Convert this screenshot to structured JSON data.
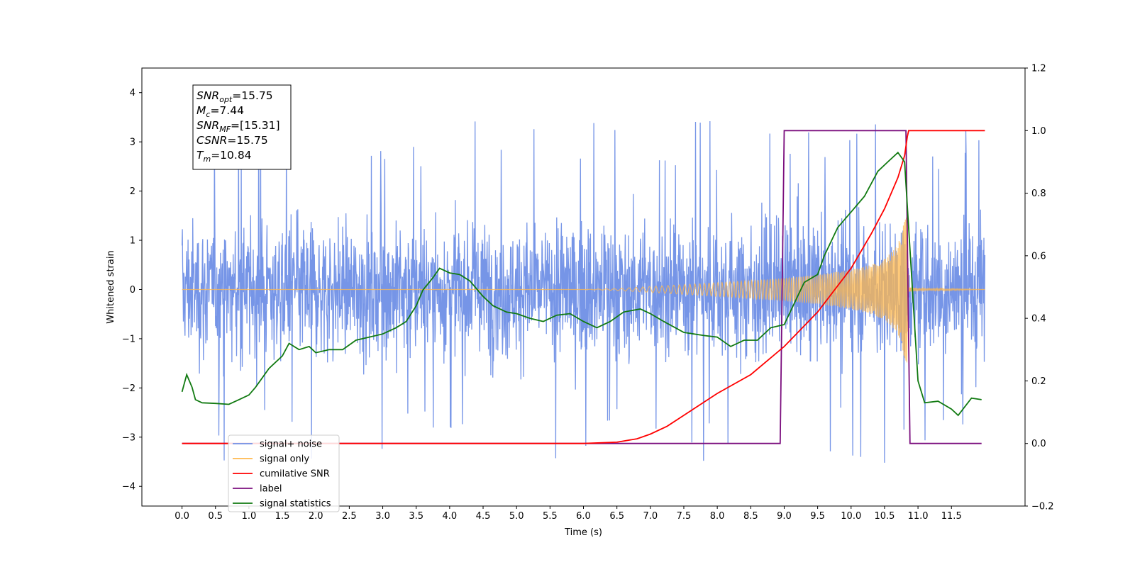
{
  "chart_data": {
    "type": "line",
    "xlabel": "Time (s)",
    "ylabel": "Whitened strain",
    "xlim": [
      -0.6,
      12.6
    ],
    "ylim": [
      -4.4,
      4.5
    ],
    "y2lim": [
      -0.2,
      1.2
    ],
    "x_ticks": [
      "0.0",
      "0.5",
      "1.0",
      "1.5",
      "2.0",
      "2.5",
      "3.0",
      "3.5",
      "4.0",
      "4.5",
      "5.0",
      "5.5",
      "6.0",
      "6.5",
      "7.0",
      "7.5",
      "8.0",
      "8.5",
      "9.0",
      "9.5",
      "10.0",
      "10.5",
      "11.0",
      "11.5"
    ],
    "y_ticks": [
      "4",
      "3",
      "2",
      "1",
      "0",
      "−1",
      "−2",
      "−3",
      "−4"
    ],
    "y2_ticks": [
      "1.2",
      "1.0",
      "0.8",
      "0.6",
      "0.4",
      "0.2",
      "0.0",
      "−0.2"
    ],
    "annotations": [
      {
        "id": "snr-opt",
        "sym": "SNR",
        "sub": "opt",
        "rest": "=15.75"
      },
      {
        "id": "mc",
        "sym": "M",
        "sub": "c",
        "rest": "=7.44"
      },
      {
        "id": "snr-mf",
        "sym": "SNR",
        "sub": "MF",
        "rest": "=[15.31]"
      },
      {
        "id": "csnr",
        "sym": "CSNR",
        "sub": "",
        "rest": "=15.75"
      },
      {
        "id": "tm",
        "sym": "T",
        "sub": "m",
        "rest": "=10.84"
      }
    ],
    "series": [
      {
        "name": "signal+ noise",
        "axis": "left",
        "color": "#6f8fe6",
        "description": "whitened strain noise, typical amplitude within ±2, extremes from −3.9 to 4.1",
        "spread": 1.9,
        "spikes_max": 4.1,
        "spikes_min": -3.9,
        "x_range": [
          0.0,
          12.0
        ]
      },
      {
        "name": "signal only",
        "axis": "left",
        "color": "#ffb84d",
        "chirp_envelope": [
          [
            0.0,
            0.0
          ],
          [
            6.0,
            0.0
          ],
          [
            6.5,
            0.02
          ],
          [
            7.0,
            0.06
          ],
          [
            7.5,
            0.1
          ],
          [
            8.0,
            0.14
          ],
          [
            8.5,
            0.18
          ],
          [
            9.0,
            0.23
          ],
          [
            9.5,
            0.3
          ],
          [
            10.0,
            0.4
          ],
          [
            10.3,
            0.5
          ],
          [
            10.5,
            0.62
          ],
          [
            10.7,
            0.9
          ],
          [
            10.8,
            1.4
          ],
          [
            10.84,
            1.7
          ],
          [
            10.86,
            0.05
          ],
          [
            11.0,
            0.02
          ],
          [
            12.0,
            0.0
          ]
        ]
      },
      {
        "name": "cumilative SNR",
        "axis": "right",
        "color": "#ff0000",
        "points": [
          [
            0.0,
            0.0
          ],
          [
            6.0,
            0.0
          ],
          [
            6.5,
            0.004
          ],
          [
            6.8,
            0.015
          ],
          [
            7.0,
            0.03
          ],
          [
            7.25,
            0.055
          ],
          [
            7.5,
            0.09
          ],
          [
            8.0,
            0.16
          ],
          [
            8.5,
            0.22
          ],
          [
            9.0,
            0.31
          ],
          [
            9.5,
            0.42
          ],
          [
            10.0,
            0.56
          ],
          [
            10.3,
            0.67
          ],
          [
            10.5,
            0.75
          ],
          [
            10.7,
            0.85
          ],
          [
            10.8,
            0.92
          ],
          [
            10.84,
            0.98
          ],
          [
            10.86,
            1.0
          ],
          [
            12.0,
            1.0
          ]
        ]
      },
      {
        "name": "label",
        "axis": "right",
        "color": "#7b0e7e",
        "points": [
          [
            0.0,
            0.0
          ],
          [
            8.94,
            0.0
          ],
          [
            9.0,
            1.0
          ],
          [
            10.82,
            1.0
          ],
          [
            10.88,
            0.0
          ],
          [
            11.95,
            0.0
          ]
        ]
      },
      {
        "name": "signal statistics",
        "axis": "right",
        "color": "#117a11",
        "points": [
          [
            0.0,
            0.165
          ],
          [
            0.07,
            0.22
          ],
          [
            0.15,
            0.18
          ],
          [
            0.2,
            0.14
          ],
          [
            0.3,
            0.13
          ],
          [
            0.5,
            0.128
          ],
          [
            0.7,
            0.125
          ],
          [
            0.85,
            0.14
          ],
          [
            1.0,
            0.155
          ],
          [
            1.1,
            0.18
          ],
          [
            1.3,
            0.24
          ],
          [
            1.5,
            0.28
          ],
          [
            1.6,
            0.32
          ],
          [
            1.75,
            0.3
          ],
          [
            1.9,
            0.31
          ],
          [
            2.0,
            0.29
          ],
          [
            2.2,
            0.3
          ],
          [
            2.4,
            0.3
          ],
          [
            2.6,
            0.33
          ],
          [
            2.8,
            0.34
          ],
          [
            3.0,
            0.35
          ],
          [
            3.2,
            0.37
          ],
          [
            3.35,
            0.39
          ],
          [
            3.5,
            0.44
          ],
          [
            3.6,
            0.49
          ],
          [
            3.75,
            0.53
          ],
          [
            3.85,
            0.56
          ],
          [
            4.0,
            0.545
          ],
          [
            4.15,
            0.54
          ],
          [
            4.3,
            0.52
          ],
          [
            4.5,
            0.47
          ],
          [
            4.65,
            0.44
          ],
          [
            4.85,
            0.42
          ],
          [
            5.0,
            0.415
          ],
          [
            5.2,
            0.4
          ],
          [
            5.4,
            0.39
          ],
          [
            5.6,
            0.41
          ],
          [
            5.8,
            0.415
          ],
          [
            6.0,
            0.39
          ],
          [
            6.2,
            0.37
          ],
          [
            6.4,
            0.39
          ],
          [
            6.6,
            0.42
          ],
          [
            6.85,
            0.43
          ],
          [
            7.0,
            0.415
          ],
          [
            7.2,
            0.39
          ],
          [
            7.5,
            0.355
          ],
          [
            7.8,
            0.345
          ],
          [
            8.0,
            0.34
          ],
          [
            8.2,
            0.31
          ],
          [
            8.4,
            0.33
          ],
          [
            8.6,
            0.33
          ],
          [
            8.8,
            0.37
          ],
          [
            9.0,
            0.38
          ],
          [
            9.2,
            0.47
          ],
          [
            9.3,
            0.515
          ],
          [
            9.5,
            0.54
          ],
          [
            9.6,
            0.6
          ],
          [
            9.8,
            0.69
          ],
          [
            10.0,
            0.74
          ],
          [
            10.2,
            0.79
          ],
          [
            10.4,
            0.87
          ],
          [
            10.55,
            0.9
          ],
          [
            10.7,
            0.93
          ],
          [
            10.8,
            0.9
          ],
          [
            10.9,
            0.55
          ],
          [
            11.0,
            0.2
          ],
          [
            11.1,
            0.13
          ],
          [
            11.3,
            0.135
          ],
          [
            11.5,
            0.11
          ],
          [
            11.6,
            0.09
          ],
          [
            11.8,
            0.145
          ],
          [
            11.95,
            0.14
          ]
        ]
      }
    ],
    "legend": {
      "placement": "lower-left",
      "entries": [
        {
          "label": "signal+ noise",
          "color": "#6f8fe6"
        },
        {
          "label": "signal only",
          "color": "#ffb84d"
        },
        {
          "label": "cumilative SNR",
          "color": "#ff0000"
        },
        {
          "label": "label",
          "color": "#7b0e7e"
        },
        {
          "label": "signal statistics",
          "color": "#117a11"
        }
      ]
    }
  }
}
